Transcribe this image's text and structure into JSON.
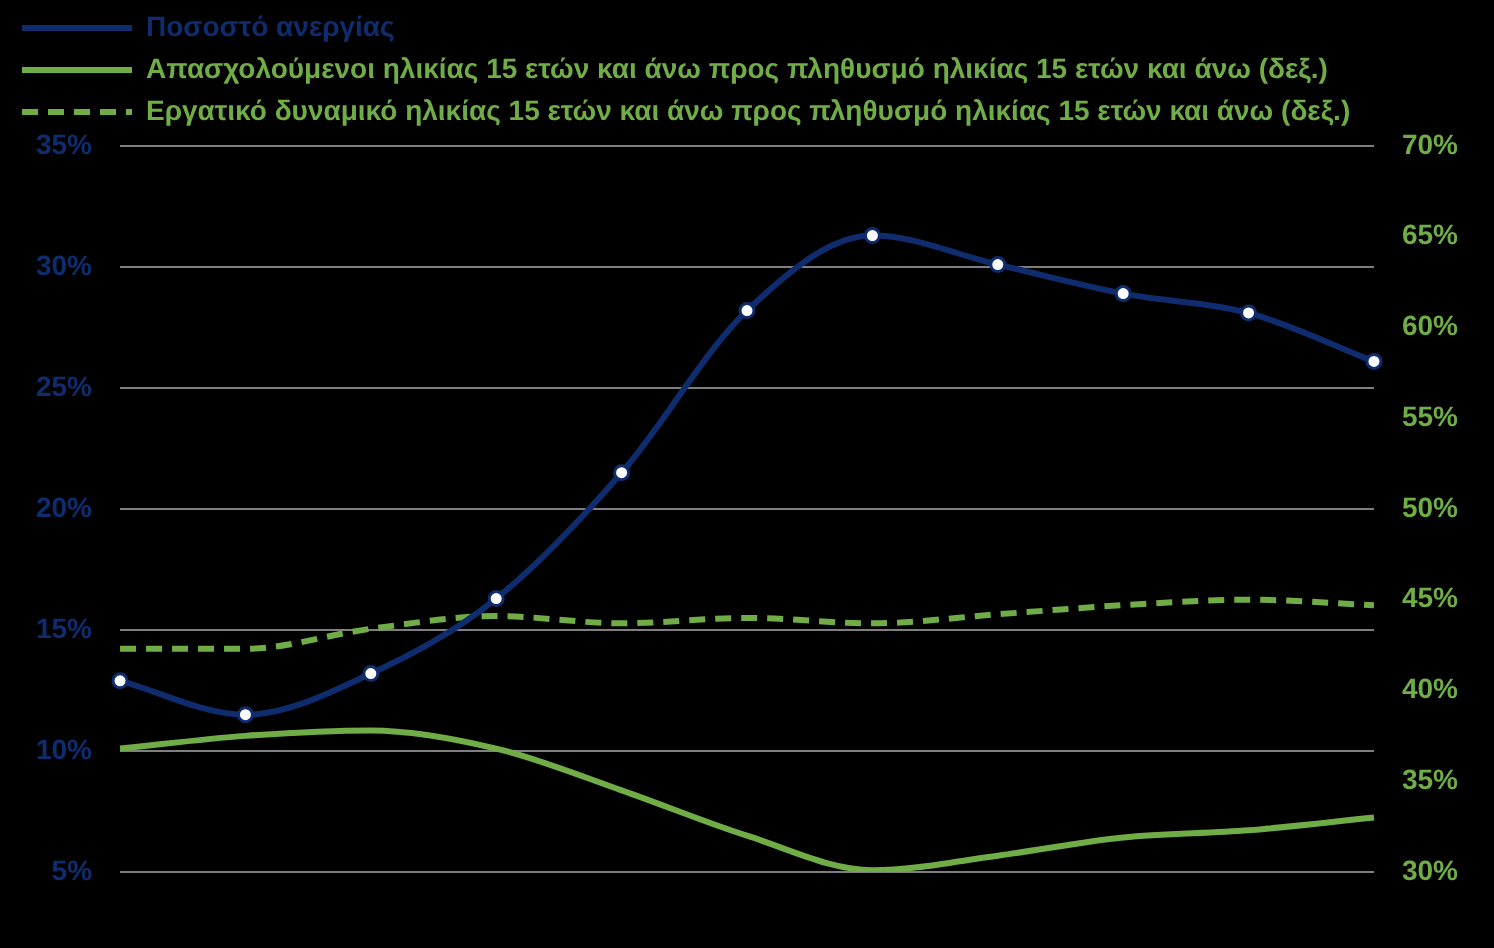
{
  "chart_data": {
    "type": "line",
    "categories": [
      null,
      null,
      null,
      null,
      null,
      null,
      null,
      null,
      null,
      null,
      null
    ],
    "series": [
      {
        "name": "Ποσοστό ανεργίας",
        "color": "#0f2d6e",
        "marker": "circle",
        "line_style": "solid",
        "values": [
          12.9,
          11.5,
          13.2,
          16.3,
          21.5,
          28.2,
          31.3,
          30.1,
          28.9,
          28.1,
          26.1
        ]
      },
      {
        "name": "Απασχολούμενοι ηλικίας 15 ετών και άνω προς πληθυσμό ηλικίας 15 ετών και άνω (δεξ.)",
        "color": "#70ad47",
        "axis": "y2",
        "marker": "none",
        "line_style": "solid",
        "values": [
          36.8,
          37.5,
          37.8,
          36.8,
          34.5,
          32.0,
          30.1,
          30.9,
          31.9,
          32.3,
          33.0
        ]
      },
      {
        "name": "Εργατικό δυναμικό ηλικίας 15 ετών και άνω προς πληθυσμό ηλικίας 15 ετών και άνω (δεξ.)",
        "color": "#70ad47",
        "axis": "y2",
        "marker": "none",
        "line_style": "dashed",
        "values": [
          42.3,
          42.3,
          43.4,
          44.1,
          43.7,
          44.0,
          43.7,
          44.2,
          44.7,
          45.0,
          44.7
        ]
      }
    ],
    "ylim": [
      5,
      35
    ],
    "yticks": [
      {
        "value": 5,
        "label": "5%"
      },
      {
        "value": 10,
        "label": "10%"
      },
      {
        "value": 15,
        "label": "15%"
      },
      {
        "value": 20,
        "label": "20%"
      },
      {
        "value": 25,
        "label": "25%"
      },
      {
        "value": 30,
        "label": "30%"
      },
      {
        "value": 35,
        "label": "35%"
      }
    ],
    "y2lim": [
      30,
      70
    ],
    "y2ticks": [
      {
        "value": 30,
        "label": "30%"
      },
      {
        "value": 35,
        "label": "35%"
      },
      {
        "value": 40,
        "label": "40%"
      },
      {
        "value": 45,
        "label": "45%"
      },
      {
        "value": 50,
        "label": "50%"
      },
      {
        "value": 55,
        "label": "55%"
      },
      {
        "value": 60,
        "label": "60%"
      },
      {
        "value": 65,
        "label": "65%"
      },
      {
        "value": 70,
        "label": "70%"
      }
    ],
    "grid": "y",
    "legend": "top left",
    "tick_labels": "y"
  }
}
